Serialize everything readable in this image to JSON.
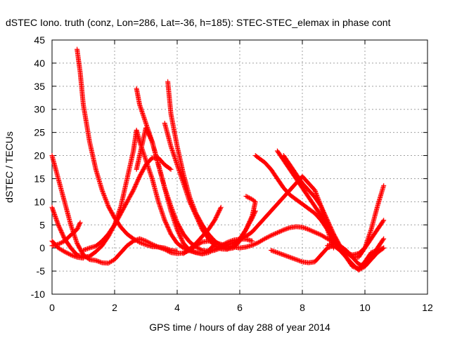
{
  "chart_data": {
    "type": "scatter",
    "title": "dSTEC Iono. truth (conz, Lon=286, Lat=-36, h=185): STEC-STEC_elemax in phase cont",
    "xlabel": "GPS time / hours of day 288 of year 2014",
    "ylabel": "dSTEC  / TECUs",
    "xlim": [
      0,
      12
    ],
    "ylim": [
      -10,
      45
    ],
    "xticks": [
      0,
      2,
      4,
      6,
      8,
      10,
      12
    ],
    "yticks": [
      -10,
      -5,
      0,
      5,
      10,
      15,
      20,
      25,
      30,
      35,
      40,
      45
    ],
    "grid": true,
    "marker": "+",
    "color": "#ff0000",
    "series": [
      {
        "points": [
          [
            0.0,
            20
          ],
          [
            0.2,
            15
          ],
          [
            0.4,
            10
          ],
          [
            0.6,
            5
          ],
          [
            0.8,
            1
          ],
          [
            1.0,
            -1.5
          ],
          [
            1.2,
            -2.5
          ],
          [
            1.4,
            -2.7
          ],
          [
            1.6,
            -3.2
          ],
          [
            1.8,
            -3.3
          ],
          [
            2.0,
            -2.5
          ],
          [
            2.2,
            -1
          ],
          [
            2.4,
            0.5
          ],
          [
            2.6,
            1.5
          ],
          [
            2.8,
            2
          ],
          [
            3.0,
            1.5
          ],
          [
            3.2,
            0.8
          ],
          [
            3.4,
            0.2
          ],
          [
            3.6,
            -0.3
          ],
          [
            3.8,
            -1
          ],
          [
            4.0,
            -1.2
          ],
          [
            4.2,
            -1.1
          ],
          [
            4.4,
            -0.5
          ],
          [
            4.6,
            0.5
          ],
          [
            4.8,
            1.3
          ],
          [
            5.0,
            1.5
          ],
          [
            5.2,
            1.2
          ],
          [
            5.4,
            0.8
          ],
          [
            5.6,
            0.4
          ],
          [
            5.8,
            0.2
          ],
          [
            6.0,
            0.0
          ],
          [
            6.2,
            0.2
          ],
          [
            6.4,
            0.6
          ],
          [
            6.6,
            1.2
          ],
          [
            6.8,
            2
          ],
          [
            7.0,
            2.7
          ],
          [
            7.2,
            3.3
          ],
          [
            7.4,
            3.9
          ],
          [
            7.6,
            4.4
          ],
          [
            7.8,
            4.6
          ],
          [
            8.0,
            4.5
          ],
          [
            8.2,
            4
          ],
          [
            8.4,
            3.4
          ],
          [
            8.6,
            2.8
          ],
          [
            8.8,
            2
          ],
          [
            9.0,
            1.2
          ]
        ]
      },
      {
        "points": [
          [
            0.0,
            8.8
          ],
          [
            0.2,
            5
          ],
          [
            0.4,
            2
          ],
          [
            0.6,
            0
          ],
          [
            0.8,
            -1.5
          ],
          [
            1.0,
            -2
          ],
          [
            1.2,
            -1.8
          ],
          [
            1.4,
            -0.8
          ],
          [
            1.6,
            0.5
          ],
          [
            1.8,
            2.5
          ],
          [
            2.0,
            5
          ],
          [
            2.2,
            9
          ],
          [
            2.4,
            15
          ],
          [
            2.6,
            21
          ],
          [
            2.7,
            25.5
          ],
          [
            2.8,
            23
          ],
          [
            3.0,
            19
          ],
          [
            3.2,
            15
          ],
          [
            3.4,
            10
          ],
          [
            3.6,
            6
          ],
          [
            3.8,
            3
          ],
          [
            4.0,
            1
          ],
          [
            4.2,
            0
          ],
          [
            4.4,
            -0.6
          ],
          [
            4.6,
            -1
          ],
          [
            4.8,
            -1.3
          ],
          [
            5.0,
            -1
          ],
          [
            5.2,
            -0.3
          ],
          [
            5.4,
            0.5
          ],
          [
            5.6,
            1.2
          ],
          [
            5.8,
            1.7
          ],
          [
            6.0,
            1.9
          ],
          [
            6.2,
            1.9
          ],
          [
            6.4,
            1.5
          ]
        ]
      },
      {
        "points": [
          [
            0.0,
            0.5
          ],
          [
            0.2,
            0.8
          ],
          [
            0.4,
            1.5
          ],
          [
            0.6,
            2.8
          ],
          [
            0.8,
            4
          ],
          [
            0.9,
            5.5
          ]
        ]
      },
      {
        "points": [
          [
            0.0,
            1.5
          ],
          [
            0.2,
            0
          ],
          [
            0.4,
            -0.8
          ],
          [
            0.6,
            -1.5
          ],
          [
            0.8,
            -2
          ],
          [
            1.0,
            -2.2
          ]
        ]
      },
      {
        "points": [
          [
            0.8,
            43
          ],
          [
            0.9,
            38
          ],
          [
            1.0,
            31
          ],
          [
            1.2,
            23
          ],
          [
            1.4,
            17
          ],
          [
            1.6,
            12.5
          ],
          [
            1.8,
            9
          ],
          [
            2.0,
            6.5
          ],
          [
            2.2,
            4.5
          ],
          [
            2.4,
            3
          ],
          [
            2.6,
            2
          ],
          [
            2.8,
            1.2
          ],
          [
            3.0,
            0.7
          ],
          [
            3.2,
            0.3
          ],
          [
            3.4,
            0.2
          ],
          [
            3.6,
            0
          ],
          [
            3.8,
            -0.5
          ],
          [
            4.0,
            -0.7
          ]
        ]
      },
      {
        "points": [
          [
            1.0,
            -0.5
          ],
          [
            1.2,
            0
          ],
          [
            1.4,
            0.4
          ],
          [
            1.6,
            1.5
          ],
          [
            1.8,
            3
          ],
          [
            2.0,
            5
          ],
          [
            2.2,
            7.5
          ],
          [
            2.4,
            10
          ],
          [
            2.6,
            12.5
          ],
          [
            2.8,
            15.5
          ],
          [
            3.0,
            18
          ],
          [
            3.2,
            19.5
          ],
          [
            3.4,
            19.5
          ],
          [
            3.6,
            18
          ],
          [
            3.8,
            17
          ]
        ]
      },
      {
        "points": [
          [
            2.7,
            34.5
          ],
          [
            2.8,
            31
          ],
          [
            3.0,
            27
          ],
          [
            3.2,
            23
          ],
          [
            3.4,
            18
          ],
          [
            3.6,
            13
          ],
          [
            3.8,
            9
          ],
          [
            4.0,
            5.5
          ],
          [
            4.2,
            3
          ],
          [
            4.4,
            1.3
          ],
          [
            4.6,
            0.2
          ],
          [
            4.8,
            -0.5
          ],
          [
            5.0,
            -0.7
          ],
          [
            5.2,
            -0.5
          ],
          [
            5.4,
            0
          ],
          [
            5.6,
            0.6
          ],
          [
            5.8,
            1.2
          ],
          [
            6.0,
            1.8
          ],
          [
            6.2,
            2.5
          ],
          [
            6.4,
            3.5
          ],
          [
            6.6,
            5
          ],
          [
            6.8,
            6.5
          ],
          [
            7.0,
            8
          ],
          [
            7.2,
            9.5
          ],
          [
            7.4,
            11
          ],
          [
            7.6,
            12.5
          ],
          [
            7.8,
            14
          ],
          [
            8.0,
            15.5
          ],
          [
            8.2,
            14
          ],
          [
            8.4,
            12.5
          ],
          [
            8.6,
            9
          ],
          [
            8.8,
            4
          ],
          [
            9.0,
            0
          ]
        ]
      },
      {
        "points": [
          [
            2.7,
            17
          ],
          [
            2.8,
            20
          ],
          [
            2.9,
            23
          ],
          [
            3.0,
            26
          ],
          [
            3.2,
            23
          ],
          [
            3.4,
            18
          ],
          [
            3.6,
            13
          ],
          [
            3.8,
            8
          ],
          [
            4.0,
            4
          ],
          [
            4.2,
            1
          ],
          [
            4.4,
            -0.5
          ],
          [
            4.6,
            -1
          ],
          [
            4.8,
            -1.2
          ],
          [
            5.0,
            -0.6
          ],
          [
            5.2,
            0.8
          ]
        ]
      },
      {
        "points": [
          [
            3.6,
            27
          ],
          [
            3.8,
            22
          ],
          [
            4.0,
            18
          ],
          [
            4.2,
            14
          ],
          [
            4.4,
            10
          ],
          [
            4.6,
            7
          ],
          [
            4.8,
            4
          ],
          [
            5.0,
            2
          ],
          [
            5.2,
            0.5
          ],
          [
            5.4,
            -0.2
          ],
          [
            5.6,
            -0.3
          ],
          [
            5.8,
            0.5
          ],
          [
            6.0,
            2
          ],
          [
            6.2,
            4
          ],
          [
            6.4,
            6.5
          ],
          [
            6.5,
            8
          ]
        ]
      },
      {
        "points": [
          [
            3.7,
            36
          ],
          [
            3.8,
            29
          ],
          [
            4.0,
            22
          ],
          [
            4.2,
            16
          ],
          [
            4.4,
            11
          ],
          [
            4.6,
            7.5
          ],
          [
            4.8,
            5
          ],
          [
            5.0,
            3
          ],
          [
            5.2,
            1.5
          ],
          [
            5.4,
            0.5
          ],
          [
            5.6,
            -0.2
          ],
          [
            5.8,
            0
          ],
          [
            6.0,
            1.5
          ],
          [
            6.2,
            4
          ],
          [
            6.4,
            7
          ],
          [
            6.5,
            10
          ],
          [
            6.4,
            10.5
          ],
          [
            6.2,
            11.2
          ]
        ]
      },
      {
        "points": [
          [
            4.2,
            -1.2
          ],
          [
            4.4,
            -0.2
          ],
          [
            4.6,
            1
          ],
          [
            4.8,
            2.5
          ],
          [
            5.0,
            4
          ],
          [
            5.2,
            6
          ],
          [
            5.4,
            8.8
          ]
        ]
      },
      {
        "points": [
          [
            6.5,
            20
          ],
          [
            6.8,
            18.5
          ],
          [
            7.0,
            17
          ],
          [
            7.2,
            15
          ],
          [
            7.4,
            13
          ],
          [
            7.6,
            11.5
          ],
          [
            7.8,
            10.5
          ],
          [
            8.0,
            9.5
          ],
          [
            8.2,
            8.5
          ],
          [
            8.4,
            7.5
          ],
          [
            8.6,
            6
          ],
          [
            8.8,
            4
          ],
          [
            9.0,
            2
          ],
          [
            9.2,
            0
          ],
          [
            9.4,
            -1
          ],
          [
            9.6,
            -1.5
          ],
          [
            9.8,
            -1.2
          ],
          [
            10.0,
            0
          ],
          [
            10.2,
            2
          ],
          [
            10.4,
            4
          ],
          [
            10.6,
            6
          ]
        ]
      },
      {
        "points": [
          [
            7.2,
            21
          ],
          [
            7.4,
            19
          ],
          [
            7.6,
            17
          ],
          [
            7.8,
            15
          ],
          [
            8.0,
            13
          ],
          [
            8.2,
            11
          ],
          [
            8.4,
            9
          ],
          [
            8.6,
            7
          ],
          [
            8.8,
            5
          ],
          [
            9.0,
            2
          ],
          [
            9.2,
            0
          ],
          [
            9.4,
            -2
          ],
          [
            9.6,
            -4
          ],
          [
            9.8,
            -4.5
          ],
          [
            10.0,
            -3
          ],
          [
            10.2,
            -1
          ],
          [
            10.4,
            -0.5
          ],
          [
            10.6,
            0
          ]
        ]
      },
      {
        "points": [
          [
            7.4,
            20
          ],
          [
            7.6,
            18
          ],
          [
            7.8,
            16
          ],
          [
            8.0,
            14
          ],
          [
            8.2,
            12.5
          ],
          [
            8.4,
            11
          ],
          [
            8.6,
            9
          ],
          [
            8.8,
            6
          ],
          [
            9.0,
            3
          ],
          [
            9.2,
            0.5
          ],
          [
            9.4,
            -1
          ],
          [
            9.6,
            -2
          ],
          [
            9.8,
            -2
          ],
          [
            10.0,
            0
          ],
          [
            10.2,
            4
          ],
          [
            10.4,
            9
          ],
          [
            10.6,
            13.5
          ]
        ]
      },
      {
        "points": [
          [
            8.8,
            0.5
          ],
          [
            9.0,
            1
          ],
          [
            9.2,
            0.5
          ],
          [
            9.4,
            -0.5
          ],
          [
            9.6,
            -2
          ],
          [
            9.8,
            -3.5
          ],
          [
            10.0,
            -4
          ],
          [
            10.2,
            -2
          ],
          [
            10.4,
            0
          ],
          [
            10.6,
            2
          ]
        ]
      },
      {
        "points": [
          [
            7.0,
            -0.5
          ],
          [
            7.2,
            -1
          ],
          [
            7.4,
            -1.5
          ],
          [
            7.6,
            -2
          ],
          [
            7.8,
            -2.5
          ],
          [
            8.0,
            -3
          ],
          [
            8.2,
            -3.2
          ],
          [
            8.4,
            -3
          ],
          [
            8.6,
            -1.5
          ],
          [
            8.8,
            0
          ],
          [
            9.0,
            0.5
          ],
          [
            9.2,
            -0.5
          ],
          [
            9.4,
            -2
          ],
          [
            9.6,
            -3.5
          ],
          [
            9.8,
            -4.8
          ],
          [
            10.0,
            -4
          ],
          [
            10.2,
            -2.5
          ],
          [
            10.4,
            -1
          ],
          [
            10.6,
            0
          ]
        ]
      }
    ]
  }
}
